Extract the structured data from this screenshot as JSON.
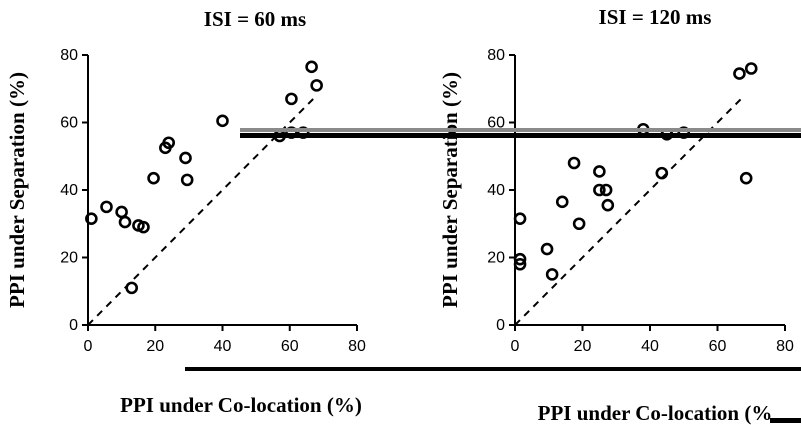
{
  "chart_data": [
    {
      "type": "scatter",
      "title": "ISI = 60 ms",
      "xlabel": "PPI under Co-location (%)",
      "ylabel": "PPI under Separation (%)",
      "xlim": [
        0,
        80
      ],
      "ylim": [
        0,
        80
      ],
      "xticks": [
        0,
        20,
        40,
        60,
        80
      ],
      "yticks": [
        0,
        20,
        40,
        60,
        80
      ],
      "grid": false,
      "marker": "open-circle",
      "reference_line": "y = x (dashed)",
      "points": [
        {
          "x": 1,
          "y": 31.5
        },
        {
          "x": 5.5,
          "y": 35
        },
        {
          "x": 10,
          "y": 33.5
        },
        {
          "x": 11,
          "y": 30.5
        },
        {
          "x": 15,
          "y": 29.5
        },
        {
          "x": 16.5,
          "y": 29
        },
        {
          "x": 13,
          "y": 11
        },
        {
          "x": 19.5,
          "y": 43.5
        },
        {
          "x": 23,
          "y": 52.5
        },
        {
          "x": 24,
          "y": 54
        },
        {
          "x": 29,
          "y": 49.5
        },
        {
          "x": 29.5,
          "y": 43
        },
        {
          "x": 40,
          "y": 60.5
        },
        {
          "x": 57,
          "y": 56
        },
        {
          "x": 60.5,
          "y": 57
        },
        {
          "x": 64,
          "y": 57
        },
        {
          "x": 60.5,
          "y": 67
        },
        {
          "x": 66.5,
          "y": 76.5
        },
        {
          "x": 68,
          "y": 71
        }
      ]
    },
    {
      "type": "scatter",
      "title": "ISI = 120 ms",
      "xlabel": "PPI under Co-location (%",
      "ylabel": "PPI under Separation (%)",
      "xlim": [
        0,
        80
      ],
      "ylim": [
        0,
        80
      ],
      "xticks": [
        0,
        20,
        40,
        60,
        80
      ],
      "yticks": [
        0,
        20,
        40,
        60,
        80
      ],
      "grid": false,
      "marker": "open-circle",
      "reference_line": "y = x (dashed)",
      "points": [
        {
          "x": 1.5,
          "y": 31.5
        },
        {
          "x": 1.5,
          "y": 19.5
        },
        {
          "x": 1.5,
          "y": 18
        },
        {
          "x": 9.5,
          "y": 22.5
        },
        {
          "x": 11,
          "y": 15
        },
        {
          "x": 14,
          "y": 36.5
        },
        {
          "x": 17.5,
          "y": 48
        },
        {
          "x": 19,
          "y": 30
        },
        {
          "x": 25,
          "y": 45.5
        },
        {
          "x": 25,
          "y": 40
        },
        {
          "x": 27,
          "y": 40
        },
        {
          "x": 27.5,
          "y": 35.5
        },
        {
          "x": 38,
          "y": 58
        },
        {
          "x": 43.5,
          "y": 45
        },
        {
          "x": 45,
          "y": 56.5
        },
        {
          "x": 50,
          "y": 57
        },
        {
          "x": 66.5,
          "y": 74.5
        },
        {
          "x": 70,
          "y": 76
        },
        {
          "x": 68.5,
          "y": 43.5
        }
      ]
    }
  ]
}
